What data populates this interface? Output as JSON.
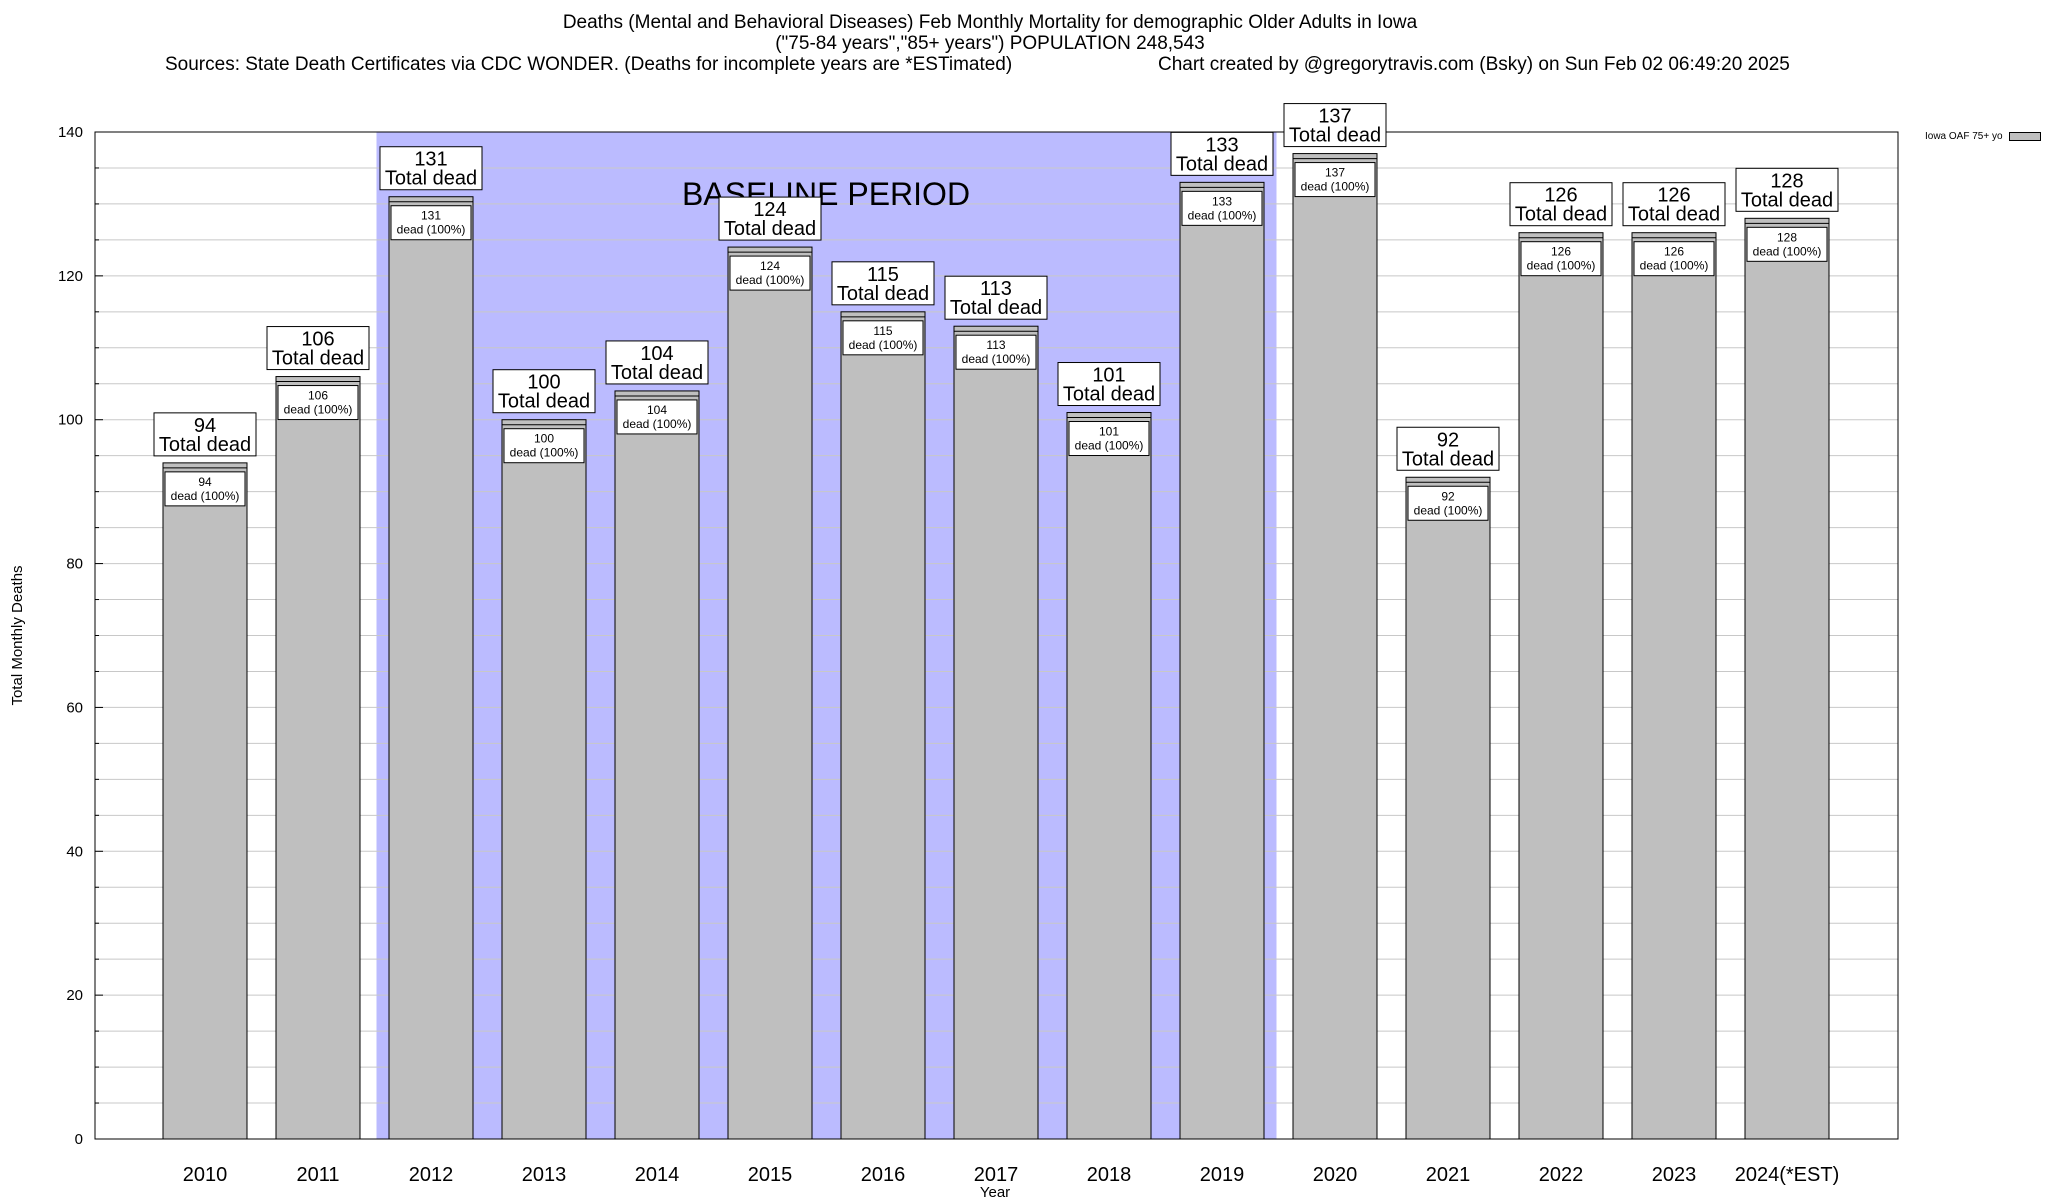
{
  "header": {
    "line1": "Deaths (Mental and Behavioral Diseases) Feb Monthly Mortality for demographic Older Adults in Iowa",
    "line2": "(\"75-84 years\",\"85+ years\") POPULATION 248,543",
    "sources": "Sources: State Death Certificates via CDC WONDER. (Deaths for incomplete years are *ESTimated)",
    "credit": "Chart created by @gregorytravis.com (Bsky) on Sun Feb 02 06:49:20 2025"
  },
  "chart_data": {
    "type": "bar",
    "categories": [
      "2010",
      "2011",
      "2012",
      "2013",
      "2014",
      "2015",
      "2016",
      "2017",
      "2018",
      "2019",
      "2020",
      "2021",
      "2022",
      "2023",
      "2024(*EST)"
    ],
    "series": [
      {
        "name": "Iowa OAF 75+ yo",
        "values": [
          94,
          106,
          131,
          100,
          104,
          124,
          115,
          113,
          101,
          133,
          137,
          92,
          126,
          126,
          128
        ],
        "color": "#bfbfbf"
      }
    ],
    "top_label_suffix": "Total dead",
    "inner_label_suffix": "dead (100%)",
    "xlabel": "Year",
    "ylabel": "Total Monthly Deaths",
    "ylim": [
      0,
      140
    ],
    "yticks": [
      0,
      20,
      40,
      60,
      80,
      100,
      120,
      140
    ],
    "grid": true,
    "legend_position": "top-right",
    "baseline_period": {
      "label": "BASELINE PERIOD",
      "start": "2012",
      "end": "2019",
      "color": "#bbbbff"
    }
  }
}
